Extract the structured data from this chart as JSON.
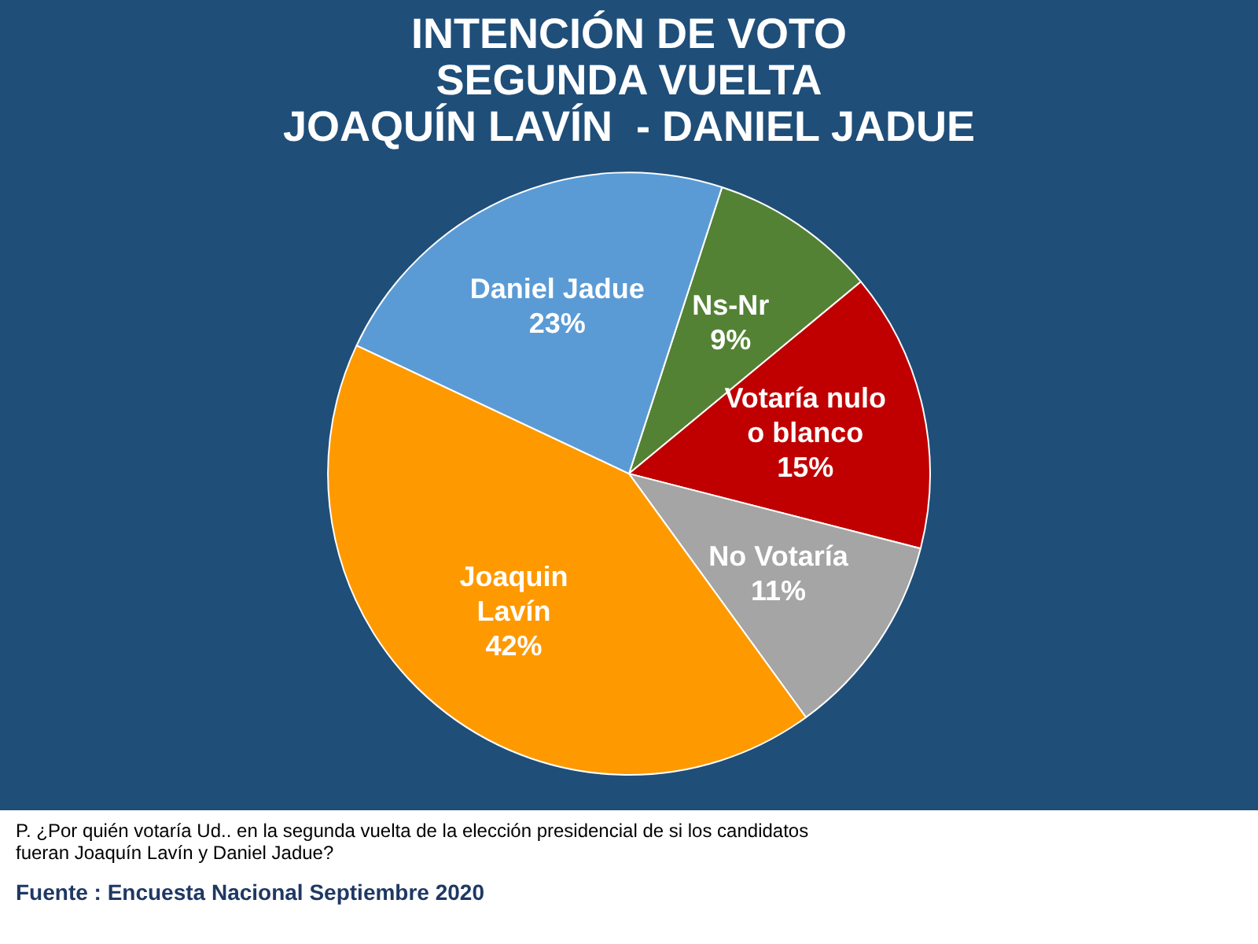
{
  "chart_data": {
    "type": "pie",
    "title": "INTENCIÓN DE VOTO\nSEGUNDA VUELTA\nJOAQUÍN LAVÍN  - DANIEL JADUE",
    "categories": [
      "Ns-Nr",
      "Votaría nulo o blanco",
      "No Votaría",
      "Joaquin Lavín",
      "Daniel Jadue"
    ],
    "values": [
      9,
      15,
      11,
      42,
      23
    ],
    "colors": [
      "#548235",
      "#c00000",
      "#a5a5a5",
      "#ff9900",
      "#5b9bd5"
    ],
    "value_labels": [
      "9%",
      "15%",
      "11%",
      "42%",
      "23%"
    ],
    "legend": false,
    "annotations": [
      "P. ¿Por quién votaría Ud.. en la segunda vuelta de la elección presidencial de  si los candidatos fueran Joaquín Lavín y Daniel Jadue?",
      "Fuente : Encuesta Nacional Septiembre 2020"
    ]
  }
}
